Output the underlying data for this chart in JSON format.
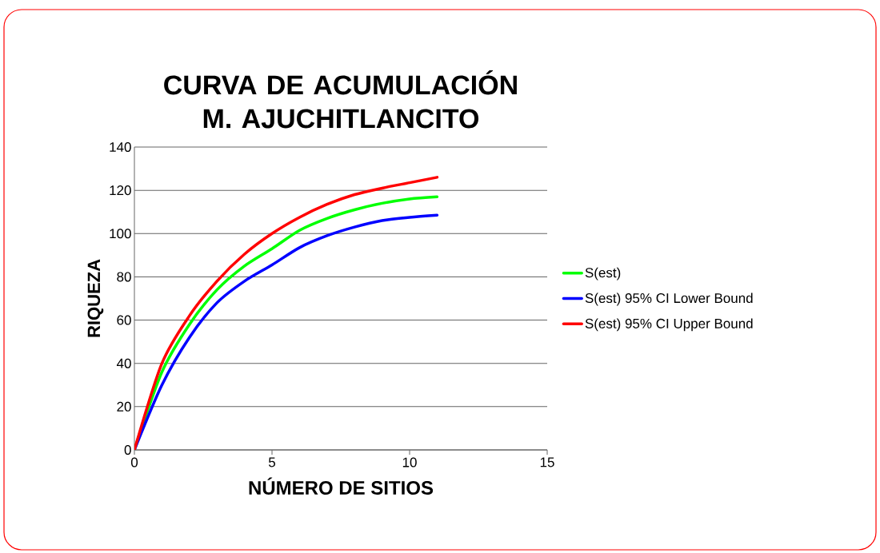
{
  "chart_data": {
    "type": "line",
    "title": "CURVA DE ACUMULACIÓN M. AJUCHITLANCITO",
    "xlabel": "NÚMERO DE SITIOS",
    "ylabel": "RIQUEZA",
    "x": [
      0,
      1,
      2,
      3,
      4,
      5,
      6,
      7,
      8,
      9,
      10,
      11
    ],
    "series": [
      {
        "name": "S(est)",
        "color": "#00ff00",
        "values": [
          0,
          36,
          58,
          74,
          85,
          93,
          101.5,
          107,
          111,
          114,
          116,
          117
        ]
      },
      {
        "name": "S(est) 95% CI Lower Bound",
        "color": "#0000ff",
        "values": [
          0,
          30,
          52,
          68,
          78,
          85.5,
          93.5,
          99,
          103,
          106,
          107.5,
          108.5
        ]
      },
      {
        "name": "S(est) 95% CI Upper Bound",
        "color": "#ff0000",
        "values": [
          0,
          40,
          62,
          78,
          90.5,
          100,
          107.5,
          113.5,
          118,
          121,
          123.5,
          126
        ]
      }
    ],
    "xlim": [
      0,
      15
    ],
    "xticks": [
      0,
      5,
      10,
      15
    ],
    "ylim": [
      0,
      140
    ],
    "yticks": [
      0,
      20,
      40,
      60,
      80,
      100,
      120,
      140
    ],
    "grid": "y",
    "legend": "right",
    "marker": "none",
    "line_style": "solid"
  }
}
